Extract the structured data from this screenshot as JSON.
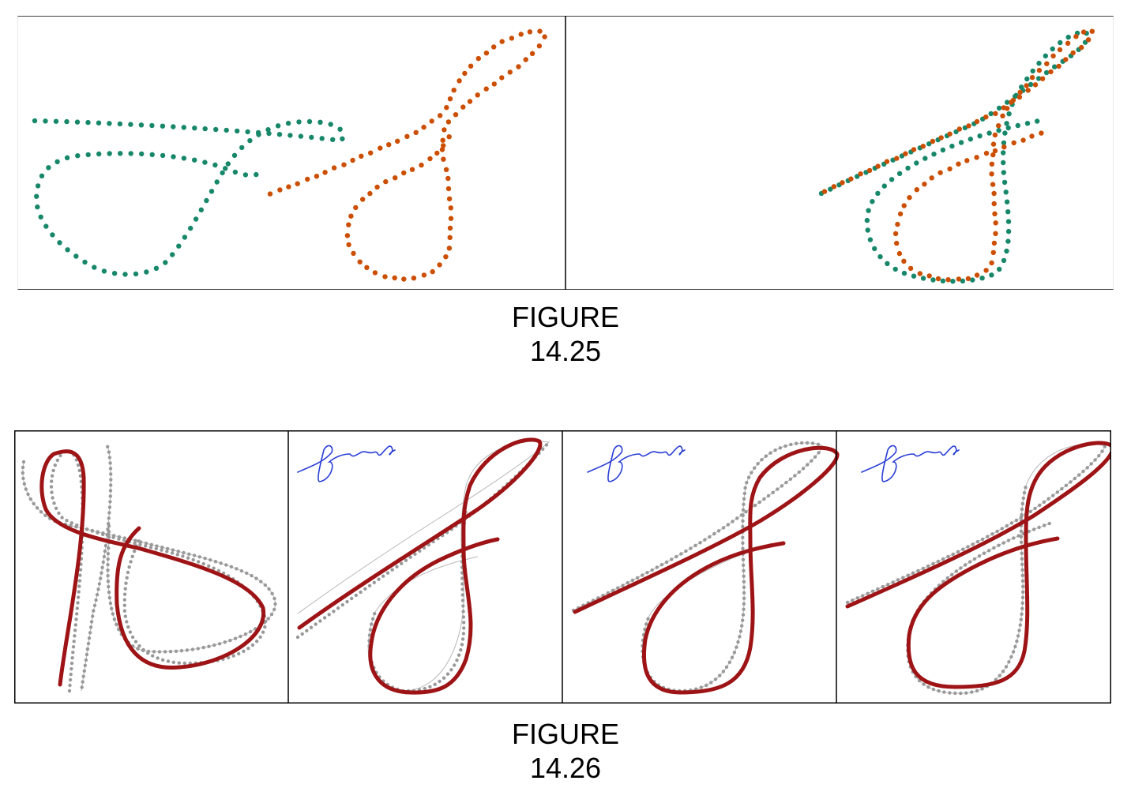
{
  "figure_14_25": {
    "caption_word": "FIGURE",
    "caption_number": "14.25",
    "colors": {
      "stroke_a": "#17876a",
      "stroke_b": "#cc4e00",
      "border": "#000000"
    }
  },
  "figure_14_26": {
    "caption_word": "FIGURE",
    "caption_number": "14.26",
    "colors": {
      "warped_curve": "#9e1416",
      "reference_dots": "#999999",
      "signature_ink": "#2a3fd6",
      "border": "#000000"
    }
  }
}
